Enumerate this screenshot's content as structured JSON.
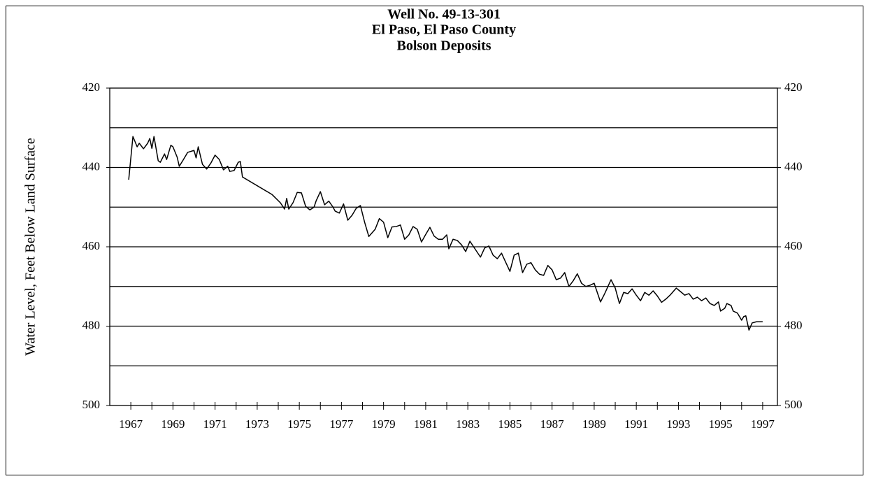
{
  "chart_data": {
    "type": "line",
    "title_lines": [
      "Well No. 49-13-301",
      "El Paso, El Paso County",
      "Bolson Deposits"
    ],
    "ylabel": "Water Level, Feet Below Land Surface",
    "color": "#000000",
    "y_reversed": true,
    "ylim": [
      420,
      500
    ],
    "yticks": [
      420,
      440,
      460,
      480,
      500
    ],
    "y2lim": [
      420,
      500
    ],
    "y2ticks": [
      420,
      440,
      460,
      480,
      500
    ],
    "grid_yticks": [
      430,
      440,
      450,
      460,
      470,
      480,
      490
    ],
    "xlim": [
      1966,
      1997.7
    ],
    "xticks": [
      1967,
      1969,
      1971,
      1973,
      1975,
      1977,
      1979,
      1981,
      1983,
      1985,
      1987,
      1989,
      1991,
      1993,
      1995,
      1997
    ],
    "minor_xticks": [
      1968,
      1970,
      1972,
      1974,
      1976,
      1978,
      1980,
      1982,
      1984,
      1986,
      1988,
      1990,
      1992,
      1994,
      1996
    ],
    "x": [
      1966.9,
      1967.1,
      1967.3,
      1967.4,
      1967.6,
      1967.8,
      1967.9,
      1968.0,
      1968.1,
      1968.3,
      1968.4,
      1968.6,
      1968.7,
      1968.9,
      1969.0,
      1969.2,
      1969.3,
      1969.5,
      1969.7,
      1970.0,
      1970.1,
      1970.2,
      1970.4,
      1970.6,
      1970.8,
      1971.0,
      1971.2,
      1971.4,
      1971.6,
      1971.7,
      1971.9,
      1972.1,
      1972.2,
      1972.3,
      1973.7,
      1974.1,
      1974.3,
      1974.4,
      1974.5,
      1974.7,
      1974.9,
      1975.1,
      1975.3,
      1975.5,
      1975.7,
      1975.8,
      1976.0,
      1976.2,
      1976.4,
      1976.6,
      1976.7,
      1976.9,
      1977.1,
      1977.3,
      1977.5,
      1977.7,
      1977.9,
      1978.1,
      1978.3,
      1978.6,
      1978.8,
      1979.0,
      1979.2,
      1979.4,
      1979.6,
      1979.8,
      1980.0,
      1980.2,
      1980.4,
      1980.6,
      1980.8,
      1981.0,
      1981.2,
      1981.4,
      1981.6,
      1981.8,
      1982.0,
      1982.1,
      1982.3,
      1982.5,
      1982.7,
      1982.9,
      1983.1,
      1983.3,
      1983.6,
      1983.8,
      1984.0,
      1984.2,
      1984.4,
      1984.6,
      1984.8,
      1985.0,
      1985.2,
      1985.4,
      1985.6,
      1985.8,
      1986.0,
      1986.2,
      1986.4,
      1986.6,
      1986.8,
      1987.0,
      1987.2,
      1987.4,
      1987.6,
      1987.8,
      1988.0,
      1988.2,
      1988.4,
      1988.6,
      1988.8,
      1989.0,
      1989.3,
      1989.5,
      1989.8,
      1990.0,
      1990.2,
      1990.4,
      1990.6,
      1990.8,
      1991.0,
      1991.2,
      1991.4,
      1991.6,
      1991.8,
      1992.0,
      1992.2,
      1992.4,
      1992.6,
      1992.9,
      1993.1,
      1993.3,
      1993.5,
      1993.7,
      1993.9,
      1994.1,
      1994.3,
      1994.5,
      1994.7,
      1994.9,
      1995.0,
      1995.2,
      1995.3,
      1995.5,
      1995.6,
      1995.8,
      1996.0,
      1996.1,
      1996.2,
      1996.35,
      1996.5,
      1996.7,
      1997.0
    ],
    "values": [
      443.1,
      432.2,
      434.8,
      433.9,
      435.3,
      433.9,
      432.7,
      435.2,
      432.2,
      438.3,
      438.7,
      436.6,
      438.0,
      434.4,
      434.8,
      437.4,
      439.7,
      438.0,
      436.2,
      435.7,
      437.6,
      434.8,
      439.2,
      440.4,
      438.9,
      436.9,
      438.0,
      440.6,
      439.7,
      441.0,
      440.8,
      438.7,
      438.5,
      442.4,
      446.8,
      448.9,
      450.5,
      447.8,
      450.5,
      448.9,
      446.3,
      446.4,
      449.8,
      450.7,
      450.0,
      448.4,
      446.1,
      449.4,
      448.5,
      450.0,
      451.0,
      451.5,
      449.2,
      453.3,
      452.1,
      450.3,
      449.6,
      453.8,
      457.4,
      455.6,
      452.9,
      453.8,
      457.7,
      455.0,
      454.9,
      454.5,
      458.1,
      457.0,
      454.9,
      455.6,
      458.8,
      456.9,
      455.1,
      457.3,
      458.1,
      458.1,
      457.0,
      460.5,
      458.1,
      458.4,
      459.5,
      461.2,
      458.6,
      460.2,
      462.6,
      460.3,
      459.8,
      462.1,
      463.0,
      461.6,
      463.9,
      466.2,
      462.1,
      461.6,
      466.5,
      464.4,
      464.0,
      465.8,
      466.9,
      467.2,
      464.7,
      465.8,
      468.3,
      467.9,
      466.5,
      470.0,
      468.6,
      466.8,
      469.2,
      470.0,
      469.7,
      469.2,
      473.9,
      471.8,
      468.3,
      470.4,
      474.3,
      471.5,
      471.8,
      470.6,
      472.2,
      473.6,
      471.5,
      472.2,
      471.1,
      472.4,
      474.0,
      473.2,
      472.2,
      470.4,
      471.3,
      472.2,
      471.8,
      473.2,
      472.7,
      473.6,
      472.9,
      474.3,
      474.8,
      473.9,
      476.2,
      475.5,
      474.3,
      474.8,
      476.2,
      476.7,
      478.5,
      477.6,
      477.4,
      481.0,
      479.2,
      478.9,
      478.9
    ]
  }
}
